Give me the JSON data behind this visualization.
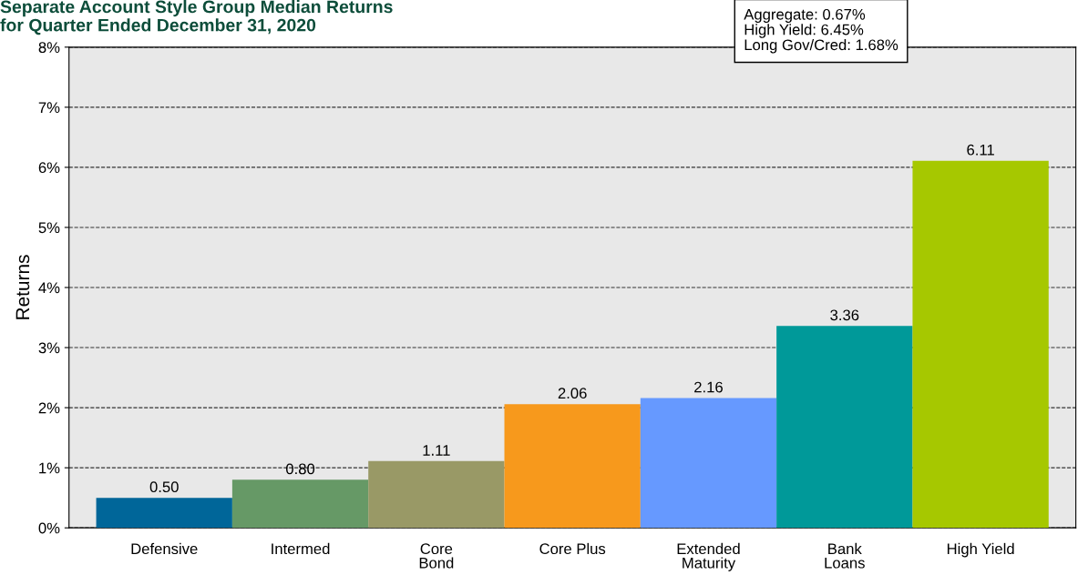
{
  "chart_data": {
    "type": "bar",
    "title": "Separate Account Style Group Median Returns",
    "subtitle": "for Quarter Ended December 31, 2020",
    "ylabel": "Returns",
    "categories": [
      "Defensive",
      "Intermed",
      "Core\nBond",
      "Core Plus",
      "Extended\nMaturity",
      "Bank\nLoans",
      "High Yield"
    ],
    "values": [
      0.5,
      0.8,
      1.11,
      2.06,
      2.16,
      3.36,
      6.11
    ],
    "value_labels": [
      "0.50",
      "0.80",
      "1.11",
      "2.06",
      "2.16",
      "3.36",
      "6.11"
    ],
    "colors": [
      "#006699",
      "#669966",
      "#999966",
      "#f7991c",
      "#6699ff",
      "#009999",
      "#a6c800"
    ],
    "ylim": [
      0,
      8
    ],
    "yticks": [
      {
        "value": 0,
        "label": "0%"
      },
      {
        "value": 1,
        "label": "1%"
      },
      {
        "value": 2,
        "label": "2%"
      },
      {
        "value": 3,
        "label": "3%"
      },
      {
        "value": 4,
        "label": "4%"
      },
      {
        "value": 5,
        "label": "5%"
      },
      {
        "value": 6,
        "label": "6%"
      },
      {
        "value": 7,
        "label": "7%"
      },
      {
        "value": 8,
        "label": "8%"
      }
    ],
    "grid": "y",
    "legend": false,
    "annotations": [
      "Aggregate: 0.67%",
      "High Yield: 6.45%",
      "Long Gov/Cred: 1.68%"
    ]
  }
}
